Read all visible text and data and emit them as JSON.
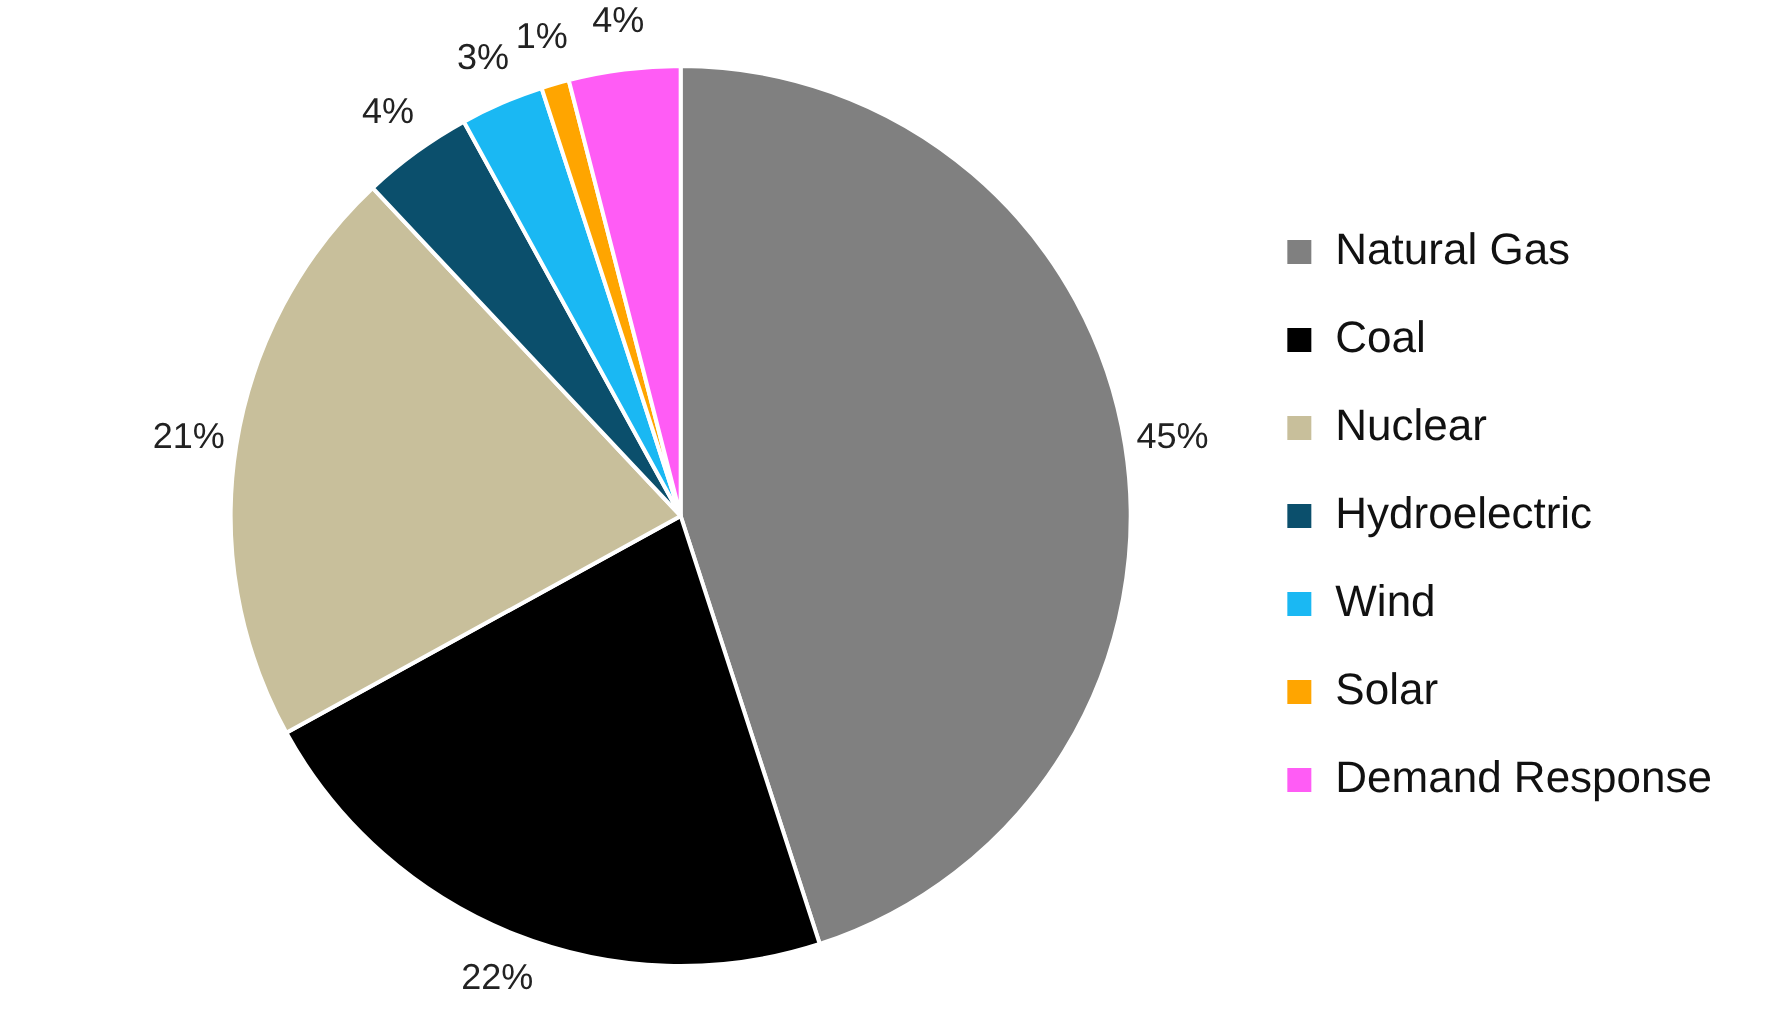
{
  "chart_data": {
    "type": "pie",
    "categories": [
      "Natural Gas",
      "Coal",
      "Nuclear",
      "Hydroelectric",
      "Wind",
      "Solar",
      "Demand Response"
    ],
    "values": [
      45,
      22,
      21,
      4,
      3,
      1,
      4
    ],
    "colors": [
      "#808080",
      "#000000",
      "#c8bf9b",
      "#0b4f6c",
      "#1ab8f3",
      "#ffa500",
      "#ff5cf5"
    ],
    "value_labels": [
      "45%",
      "22%",
      "21%",
      "4%",
      "3%",
      "1%",
      "4%"
    ],
    "legend": "right"
  }
}
